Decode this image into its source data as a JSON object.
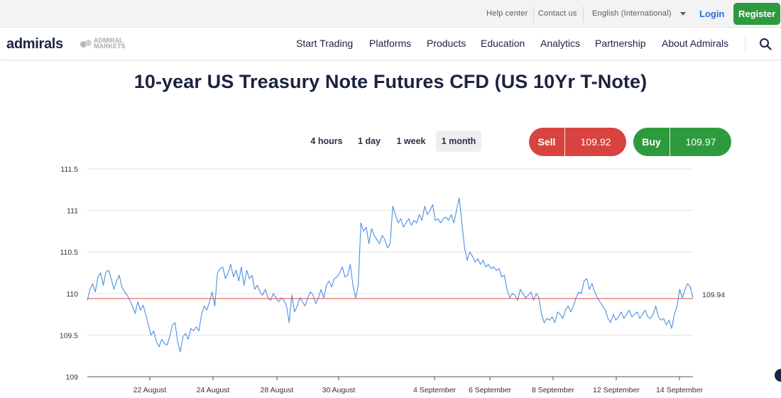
{
  "topbar": {
    "help_center": "Help center",
    "contact_us": "Contact us",
    "language": "English (International)",
    "login": "Login",
    "register": "Register"
  },
  "nav": {
    "logo": "admirals",
    "secondary_logo": "ADMIRAL MARKETS",
    "items": [
      "Start Trading",
      "Platforms",
      "Products",
      "Education",
      "Analytics",
      "Partnership",
      "About Admirals"
    ],
    "search_icon": "search-icon"
  },
  "page": {
    "title": "10-year US Treasury Note Futures CFD (US 10Yr T-Note)"
  },
  "ranges": {
    "options": [
      "4 hours",
      "1 day",
      "1 week",
      "1 month"
    ],
    "selected": "1 month"
  },
  "quotes": {
    "sell_label": "Sell",
    "sell_price": "109.92",
    "buy_label": "Buy",
    "buy_price": "109.97",
    "sell_color": "#d9433f",
    "buy_color": "#2e9a3e"
  },
  "chart_data": {
    "type": "line",
    "yticks": [
      "111.5",
      "111",
      "110.5",
      "110",
      "109.5",
      "109"
    ],
    "ylim": [
      109,
      111.5
    ],
    "xticks": [
      "22 August",
      "24 August",
      "28 August",
      "30 August",
      "4 September",
      "6 September",
      "8 September",
      "12 September",
      "14 September"
    ],
    "current_value": 109.94,
    "current_label": "109.94",
    "grid": true,
    "line_color": "#4a90e2",
    "current_line_color": "#e0494a",
    "series": [
      {
        "values": [
          109.92,
          110.05,
          110.12,
          110.02,
          110.2,
          110.25,
          110.1,
          110.26,
          110.28,
          110.18,
          110.05,
          110.15,
          110.22,
          110.08,
          110.02,
          109.98,
          109.92,
          109.85,
          109.76,
          109.9,
          109.8,
          109.86,
          109.75,
          109.62,
          109.5,
          109.55,
          109.42,
          109.36,
          109.45,
          109.4,
          109.38,
          109.48,
          109.62,
          109.65,
          109.42,
          109.3,
          109.48,
          109.52,
          109.45,
          109.58,
          109.55,
          109.6,
          109.55,
          109.75,
          109.85,
          109.8,
          109.9,
          110.02,
          109.85,
          110.25,
          110.3,
          110.32,
          110.18,
          110.25,
          110.35,
          110.2,
          110.28,
          110.15,
          110.32,
          110.1,
          110.28,
          110.18,
          110.22,
          110.05,
          110.1,
          110.02,
          109.98,
          110.05,
          109.95,
          109.92,
          110.0,
          109.95,
          109.9,
          109.95,
          109.92,
          109.85,
          109.65,
          109.98,
          109.78,
          109.85,
          109.95,
          109.9,
          109.85,
          109.95,
          110.02,
          109.98,
          109.88,
          109.95,
          110.05,
          109.95,
          110.1,
          110.15,
          110.08,
          110.18,
          110.2,
          110.25,
          110.32,
          110.2,
          110.22,
          110.35,
          110.1,
          109.95,
          110.1,
          110.85,
          110.75,
          110.8,
          110.6,
          110.78,
          110.7,
          110.65,
          110.6,
          110.7,
          110.65,
          110.55,
          110.6,
          111.05,
          110.95,
          110.85,
          110.9,
          110.8,
          110.85,
          110.9,
          110.82,
          110.88,
          110.85,
          110.95,
          110.88,
          111.05,
          110.95,
          111.0,
          111.07,
          110.88,
          110.9,
          110.85,
          110.9,
          110.92,
          110.88,
          110.95,
          110.85,
          111.0,
          111.15,
          110.85,
          110.55,
          110.4,
          110.5,
          110.45,
          110.38,
          110.42,
          110.35,
          110.4,
          110.32,
          110.35,
          110.3,
          110.32,
          110.28,
          110.3,
          110.2,
          110.22,
          110.05,
          109.95,
          110.0,
          109.98,
          109.92,
          110.05,
          110.0,
          109.95,
          109.98,
          110.02,
          109.92,
          110.0,
          109.95,
          109.75,
          109.65,
          109.7,
          109.68,
          109.72,
          109.65,
          109.78,
          109.75,
          109.7,
          109.8,
          109.85,
          109.78,
          109.85,
          109.95,
          110.02,
          110.0,
          110.15,
          110.18,
          110.05,
          110.12,
          110.02,
          109.95,
          109.9,
          109.85,
          109.8,
          109.7,
          109.65,
          109.75,
          109.68,
          109.72,
          109.78,
          109.7,
          109.75,
          109.8,
          109.72,
          109.75,
          109.78,
          109.7,
          109.75,
          109.8,
          109.72,
          109.7,
          109.75,
          109.85,
          109.72,
          109.68,
          109.7,
          109.62,
          109.68,
          109.58,
          109.75,
          109.85,
          110.05,
          109.95,
          110.05,
          110.12,
          110.08,
          109.95
        ]
      }
    ]
  }
}
